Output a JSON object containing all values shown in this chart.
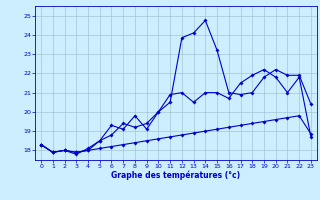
{
  "hours": [
    0,
    1,
    2,
    3,
    4,
    5,
    6,
    7,
    8,
    9,
    10,
    11,
    12,
    13,
    14,
    15,
    16,
    17,
    18,
    19,
    20,
    21,
    22,
    23
  ],
  "line1": [
    18.3,
    17.9,
    18.0,
    17.9,
    18.0,
    18.5,
    18.8,
    19.4,
    19.2,
    19.4,
    20.0,
    20.5,
    23.85,
    24.1,
    24.75,
    23.2,
    21.0,
    20.9,
    21.0,
    21.8,
    22.2,
    21.9,
    21.9,
    20.4
  ],
  "line2": [
    18.3,
    17.9,
    18.0,
    17.8,
    18.1,
    18.5,
    19.3,
    19.1,
    19.8,
    19.1,
    20.0,
    20.9,
    21.0,
    20.5,
    21.0,
    21.0,
    20.7,
    21.5,
    21.9,
    22.2,
    21.8,
    21.0,
    21.8,
    18.7
  ],
  "line3": [
    18.3,
    17.9,
    18.0,
    17.9,
    18.0,
    18.1,
    18.2,
    18.3,
    18.4,
    18.5,
    18.6,
    18.7,
    18.8,
    18.9,
    19.0,
    19.1,
    19.2,
    19.3,
    19.4,
    19.5,
    19.6,
    19.7,
    19.8,
    18.85
  ],
  "bg_color": "#cceeff",
  "line_color": "#0000cc",
  "grid_color": "#99bbcc",
  "xlabel": "Graphe des températures (°c)",
  "ylim": [
    17.5,
    25.5
  ],
  "xlim": [
    -0.5,
    23.5
  ],
  "yticks": [
    18,
    19,
    20,
    21,
    22,
    23,
    24,
    25
  ],
  "xticks": [
    0,
    1,
    2,
    3,
    4,
    5,
    6,
    7,
    8,
    9,
    10,
    11,
    12,
    13,
    14,
    15,
    16,
    17,
    18,
    19,
    20,
    21,
    22,
    23
  ],
  "figsize": [
    3.2,
    2.0
  ],
  "dpi": 100
}
